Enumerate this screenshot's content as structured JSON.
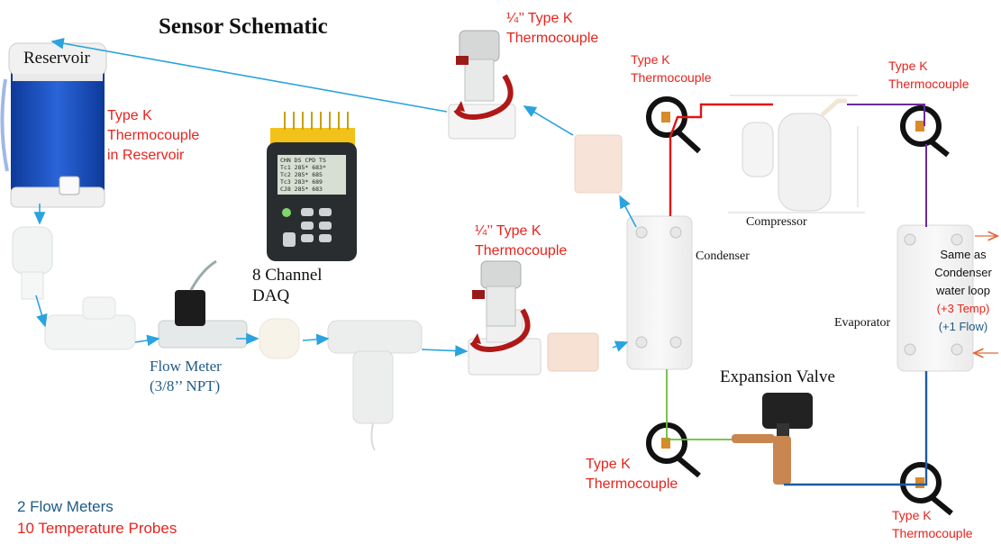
{
  "title": "Sensor Schematic",
  "labels": {
    "reservoir": "Reservoir",
    "tc_reservoir": [
      "Type K",
      "Thermocouple",
      "in Reservoir"
    ],
    "tc_quarter_top": [
      "¼’’ Type K",
      "Thermocouple"
    ],
    "tc_quarter_mid": [
      "¼’’ Type K",
      "Thermocouple"
    ],
    "tc_condenser_top": [
      "Type K",
      "Thermocouple"
    ],
    "tc_compressor_right": [
      "Type K",
      "Thermocouple"
    ],
    "tc_expansion": [
      "Type K",
      "Thermocouple"
    ],
    "tc_bottom_right": [
      "Type K",
      "Thermocouple"
    ],
    "daq": [
      "8 Channel",
      "DAQ"
    ],
    "flow_meter": [
      "Flow Meter",
      "(3/8’’ NPT)"
    ],
    "compressor": "Compressor",
    "condenser": "Condenser",
    "evaporator": "Evaporator",
    "expansion_valve": "Expansion Valve",
    "evap_note": [
      "Same as",
      "Condenser",
      "water loop"
    ],
    "evap_temp": "(+3 Temp)",
    "evap_flow": "(+1 Flow)"
  },
  "summary": {
    "flow_meters": "2 Flow Meters",
    "temp_probes": "10 Temperature Probes"
  },
  "daq_screen": [
    "CHN  DS  CPD  TS",
    "Tc1 285* 683*",
    "Tc2 285* 685",
    "Tc3 283* 689",
    "CJ8 285* 683"
  ],
  "colors": {
    "water_line": "#2aa3df",
    "refrigerant_hot": "#e31414",
    "refrigerant_suction": "#6a2aa0",
    "refrigerant_liquid": "#6abf3a",
    "refrigerant_evap": "#1f5aa0",
    "label_red": "#e8231c",
    "label_blue": "#1f5a86"
  }
}
